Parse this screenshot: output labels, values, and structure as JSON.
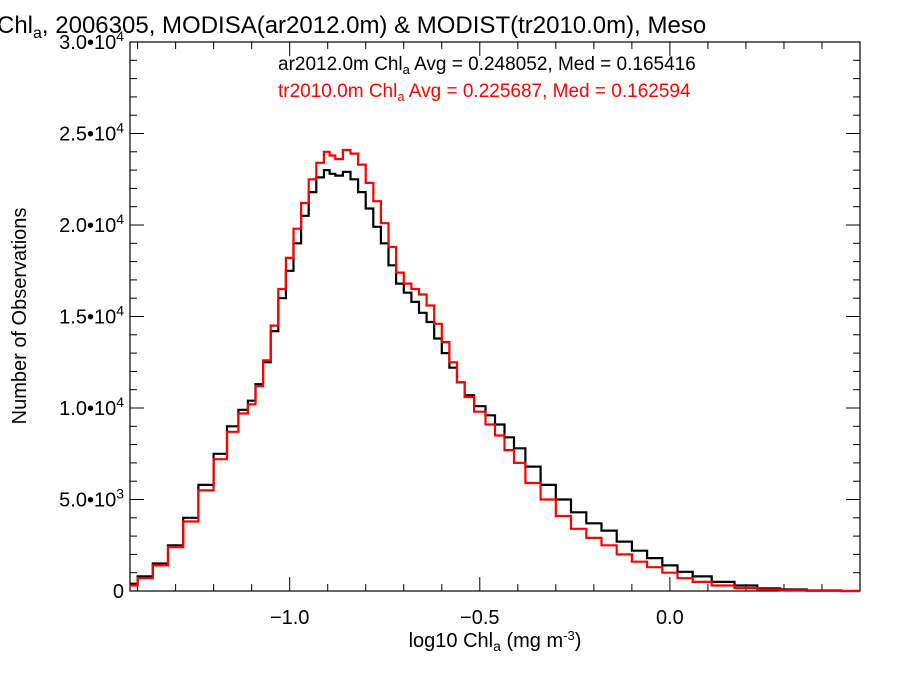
{
  "chart_data": {
    "type": "line",
    "title_parts": [
      "Chl",
      "a",
      ", 2006305, MODISA(ar2012.0m) & MODIST(tr2010.0m), Meso"
    ],
    "xlabel_parts": [
      "log10 Chl",
      "a",
      " (mg m",
      "-3",
      ")"
    ],
    "ylabel": "Number of Observations",
    "xlim": [
      -1.42,
      0.5
    ],
    "ylim": [
      0,
      30000
    ],
    "xticks": [
      {
        "value": -1.0,
        "label": "−1.0"
      },
      {
        "value": -0.5,
        "label": "−0.5"
      },
      {
        "value": 0.0,
        "label": "0.0"
      }
    ],
    "yticks": [
      {
        "value": 0,
        "mant": "0",
        "exp": ""
      },
      {
        "value": 5000,
        "mant": "5.0•10",
        "exp": "3"
      },
      {
        "value": 10000,
        "mant": "1.0•10",
        "exp": "4"
      },
      {
        "value": 15000,
        "mant": "1.5•10",
        "exp": "4"
      },
      {
        "value": 20000,
        "mant": "2.0•10",
        "exp": "4"
      },
      {
        "value": 25000,
        "mant": "2.5•10",
        "exp": "4"
      },
      {
        "value": 30000,
        "mant": "3.0•10",
        "exp": "4"
      }
    ],
    "legend": [
      {
        "parts": [
          "ar2012.0m Chl",
          "a",
          " Avg = 0.248052, Med = 0.165416"
        ],
        "color": "#000000"
      },
      {
        "parts": [
          "tr2010.0m Chl",
          "a",
          " Avg = 0.225687, Med = 0.162594"
        ],
        "color": "#ff0000"
      }
    ],
    "series": [
      {
        "color": "#000000",
        "x": [
          -1.42,
          -1.38,
          -1.34,
          -1.3,
          -1.26,
          -1.22,
          -1.18,
          -1.15,
          -1.12,
          -1.1,
          -1.08,
          -1.06,
          -1.04,
          -1.02,
          -1.0,
          -0.98,
          -0.96,
          -0.94,
          -0.92,
          -0.9,
          -0.89,
          -0.87,
          -0.85,
          -0.83,
          -0.81,
          -0.79,
          -0.77,
          -0.75,
          -0.73,
          -0.71,
          -0.69,
          -0.67,
          -0.65,
          -0.63,
          -0.61,
          -0.59,
          -0.57,
          -0.55,
          -0.53,
          -0.5,
          -0.47,
          -0.45,
          -0.42,
          -0.4,
          -0.36,
          -0.32,
          -0.28,
          -0.24,
          -0.2,
          -0.16,
          -0.12,
          -0.08,
          -0.04,
          0.0,
          0.04,
          0.08,
          0.14,
          0.2,
          0.26,
          0.32,
          0.4,
          0.5
        ],
        "y": [
          400,
          800,
          1500,
          2500,
          4000,
          5800,
          7500,
          9000,
          9900,
          10400,
          11300,
          12500,
          14200,
          16000,
          17500,
          19000,
          20500,
          21800,
          22600,
          23000,
          22800,
          22700,
          22900,
          22500,
          21800,
          20900,
          19900,
          19000,
          17800,
          16800,
          16300,
          15800,
          15200,
          14700,
          13800,
          13000,
          12200,
          11400,
          10700,
          10100,
          9600,
          9100,
          8400,
          7800,
          6800,
          5800,
          5000,
          4300,
          3700,
          3300,
          2700,
          2200,
          1800,
          1400,
          1050,
          800,
          500,
          300,
          150,
          80,
          30,
          0
        ]
      },
      {
        "color": "#ff0000",
        "x": [
          -1.42,
          -1.38,
          -1.34,
          -1.3,
          -1.26,
          -1.22,
          -1.18,
          -1.15,
          -1.12,
          -1.1,
          -1.08,
          -1.06,
          -1.04,
          -1.02,
          -1.0,
          -0.98,
          -0.96,
          -0.94,
          -0.92,
          -0.9,
          -0.89,
          -0.87,
          -0.85,
          -0.83,
          -0.81,
          -0.79,
          -0.77,
          -0.75,
          -0.73,
          -0.71,
          -0.69,
          -0.67,
          -0.65,
          -0.63,
          -0.61,
          -0.59,
          -0.57,
          -0.55,
          -0.53,
          -0.5,
          -0.47,
          -0.45,
          -0.42,
          -0.4,
          -0.36,
          -0.32,
          -0.28,
          -0.24,
          -0.2,
          -0.16,
          -0.12,
          -0.08,
          -0.04,
          0.0,
          0.04,
          0.08,
          0.14,
          0.2,
          0.26,
          0.32,
          0.4,
          0.5
        ],
        "y": [
          300,
          700,
          1400,
          2400,
          3800,
          5500,
          7200,
          8700,
          9700,
          10200,
          11200,
          12600,
          14500,
          16500,
          18200,
          19800,
          21200,
          22500,
          23400,
          24000,
          23800,
          23600,
          24100,
          23900,
          23300,
          22300,
          21300,
          20100,
          18800,
          17400,
          16800,
          16500,
          16200,
          15600,
          14600,
          13600,
          12500,
          11400,
          10600,
          9800,
          9100,
          8500,
          7700,
          7000,
          5900,
          5000,
          4100,
          3400,
          2900,
          2500,
          2000,
          1600,
          1300,
          1000,
          700,
          500,
          300,
          160,
          80,
          40,
          10,
          0
        ]
      }
    ]
  }
}
